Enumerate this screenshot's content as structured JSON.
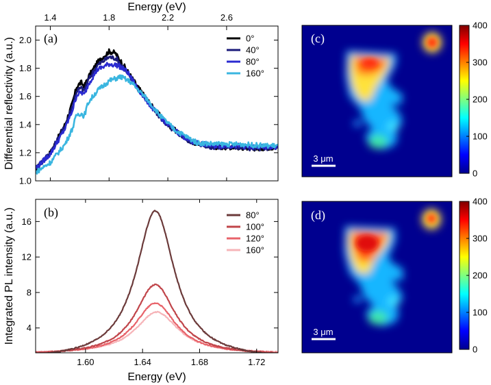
{
  "chart_data": [
    {
      "panel": "(a)",
      "type": "line",
      "title": "",
      "xlabel": "Energy (eV)",
      "ylabel": "Differential reflectivity (a.u.)",
      "xlim": [
        1.3,
        2.95
      ],
      "ylim": [
        1.0,
        2.1
      ],
      "xticks": [
        1.4,
        1.8,
        2.2,
        2.6
      ],
      "xtick_labels": [
        "1.4",
        "1.8",
        "2.2",
        "2.6"
      ],
      "yticks": [
        1.0,
        1.2,
        1.4,
        1.6,
        1.8,
        2.0
      ],
      "ytick_labels": [
        "1.0",
        "1.2",
        "1.4",
        "1.6",
        "1.8",
        "2.0"
      ],
      "legend_position": "top-right",
      "series": [
        {
          "name": "0°",
          "color": "#000000",
          "x": [
            1.3,
            1.4,
            1.5,
            1.55,
            1.58,
            1.61,
            1.63,
            1.66,
            1.72,
            1.8,
            1.84,
            1.9,
            2.0,
            2.1,
            2.2,
            2.35,
            2.5,
            2.65,
            2.8,
            2.95
          ],
          "y": [
            1.08,
            1.2,
            1.4,
            1.55,
            1.67,
            1.7,
            1.67,
            1.74,
            1.84,
            1.92,
            1.91,
            1.82,
            1.66,
            1.52,
            1.4,
            1.28,
            1.24,
            1.24,
            1.23,
            1.24
          ]
        },
        {
          "name": "40°",
          "color": "#1a1a7a",
          "x": [
            1.3,
            1.4,
            1.5,
            1.55,
            1.58,
            1.61,
            1.63,
            1.66,
            1.72,
            1.8,
            1.85,
            1.9,
            2.0,
            2.1,
            2.2,
            2.35,
            2.5,
            2.65,
            2.8,
            2.95
          ],
          "y": [
            1.09,
            1.2,
            1.39,
            1.53,
            1.64,
            1.66,
            1.64,
            1.72,
            1.82,
            1.88,
            1.87,
            1.8,
            1.65,
            1.51,
            1.39,
            1.28,
            1.24,
            1.24,
            1.23,
            1.24
          ]
        },
        {
          "name": "80°",
          "color": "#2a2ad0",
          "x": [
            1.3,
            1.4,
            1.5,
            1.55,
            1.58,
            1.61,
            1.63,
            1.66,
            1.72,
            1.8,
            1.86,
            1.92,
            2.0,
            2.1,
            2.2,
            2.35,
            2.5,
            2.65,
            2.8,
            2.95
          ],
          "y": [
            1.09,
            1.19,
            1.37,
            1.5,
            1.61,
            1.63,
            1.61,
            1.69,
            1.79,
            1.83,
            1.82,
            1.78,
            1.65,
            1.51,
            1.4,
            1.28,
            1.25,
            1.25,
            1.24,
            1.24
          ]
        },
        {
          "name": "160°",
          "color": "#3ab6e0",
          "x": [
            1.3,
            1.4,
            1.5,
            1.55,
            1.58,
            1.61,
            1.63,
            1.66,
            1.72,
            1.8,
            1.88,
            1.95,
            2.05,
            2.15,
            2.25,
            2.4,
            2.55,
            2.7,
            2.85,
            2.95
          ],
          "y": [
            1.06,
            1.13,
            1.26,
            1.37,
            1.47,
            1.48,
            1.46,
            1.56,
            1.64,
            1.71,
            1.74,
            1.7,
            1.59,
            1.46,
            1.36,
            1.27,
            1.26,
            1.26,
            1.25,
            1.25
          ]
        }
      ]
    },
    {
      "panel": "(b)",
      "type": "line",
      "title": "",
      "xlabel": "Energy (eV)",
      "ylabel": "Integrated PL intensity (a.u.)",
      "xlim": [
        1.565,
        1.735
      ],
      "ylim": [
        1.2,
        18.5
      ],
      "xticks": [
        1.6,
        1.64,
        1.68,
        1.72
      ],
      "xtick_labels": [
        "1.60",
        "1.64",
        "1.68",
        "1.72"
      ],
      "yticks": [
        4,
        8,
        12,
        16
      ],
      "ytick_labels": [
        "4",
        "8",
        "12",
        "16"
      ],
      "legend_position": "top-right",
      "series": [
        {
          "name": "80°",
          "color": "#6b3a3a",
          "peak": 17.2,
          "center": 1.649,
          "width": 0.0165,
          "base": 0.4
        },
        {
          "name": "100°",
          "color": "#c0454a",
          "peak": 8.9,
          "center": 1.649,
          "width": 0.017,
          "base": 0.9
        },
        {
          "name": "120°",
          "color": "#e8636a",
          "peak": 6.8,
          "center": 1.649,
          "width": 0.0175,
          "base": 1.0
        },
        {
          "name": "160°",
          "color": "#f6b4b8",
          "peak": 5.8,
          "center": 1.65,
          "width": 0.018,
          "base": 1.1
        }
      ]
    },
    {
      "panel": "(c)",
      "type": "heatmap",
      "scale_bar": "3 μm",
      "colorbar_ticks": [
        "400",
        "300",
        "200",
        "100",
        "0"
      ],
      "colorbar_range": [
        0,
        400
      ]
    },
    {
      "panel": "(d)",
      "type": "heatmap",
      "scale_bar": "3 μm",
      "colorbar_ticks": [
        "400",
        "300",
        "200",
        "100",
        "0"
      ],
      "colorbar_range": [
        0,
        400
      ]
    }
  ]
}
